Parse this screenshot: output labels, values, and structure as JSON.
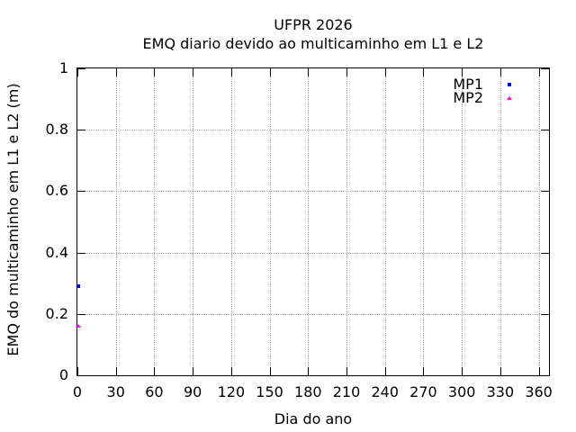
{
  "chart_data": {
    "type": "scatter",
    "title": "UFPR 2026",
    "subtitle": "EMQ diario devido ao multicaminho em L1 e L2",
    "xlabel": "Dia do ano",
    "ylabel": "EMQ do multicaminho em L1 e L2 (m)",
    "xlim": [
      0,
      368
    ],
    "ylim": [
      0,
      1
    ],
    "xticks": [
      0,
      30,
      60,
      90,
      120,
      150,
      180,
      210,
      240,
      270,
      300,
      330,
      360
    ],
    "yticks": [
      0,
      0.2,
      0.4,
      0.6,
      0.8,
      1
    ],
    "ytick_labels": [
      "0",
      "0.2",
      "0.4",
      "0.6",
      "0.8",
      "1"
    ],
    "grid": true,
    "legend_position": "top-right",
    "series": [
      {
        "name": "MP1",
        "color": "#0000ff",
        "marker": "square",
        "points": [
          [
            1,
            0.29
          ]
        ]
      },
      {
        "name": "MP2",
        "color": "#ff00ff",
        "marker": "triangle",
        "points": [
          [
            1,
            0.16
          ]
        ]
      }
    ],
    "colors": {
      "axis": "#000000",
      "grid": "#aaaaaa",
      "background": "#ffffff",
      "text": "#000000"
    }
  }
}
